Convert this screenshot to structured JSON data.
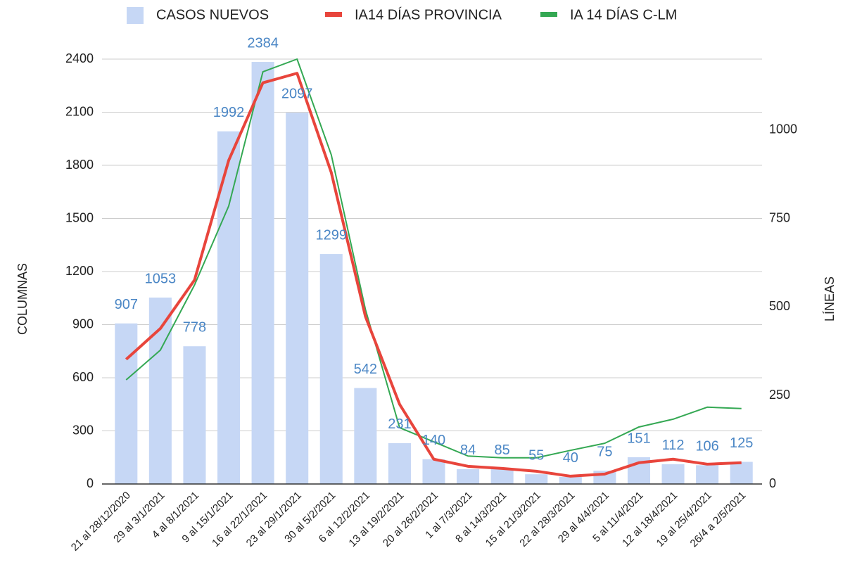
{
  "chart_data": {
    "type": "bar_line",
    "categories": [
      "21 al 28/12/2020",
      "29 al 3/1/2021",
      "4 al 8/1/2021",
      "9 al 15/1/2021",
      "16 al 22/1/2021",
      "23 al 29/1/2021",
      "30 al 5/2/2021",
      "6 al 12/2/2021",
      "13 al 19/2/2021",
      "20 al 26/2/2021",
      "1 al 7/3/2021",
      "8 al 14/3/2021",
      "15 al 21/3/2021",
      "22 al 28/3/2021",
      "29 al 4/4/2021",
      "5 al 11/4/2021",
      "12 al 18/4/2021",
      "19 al 25/4/2021",
      "26/4 a 2/5/2021"
    ],
    "series": [
      {
        "name": "CASOS NUEVOS",
        "type": "bar",
        "color": "#c6d7f5",
        "label_color": "#4a86c5",
        "values": [
          907,
          1053,
          778,
          1992,
          2384,
          2097,
          1299,
          542,
          231,
          140,
          84,
          85,
          55,
          40,
          75,
          151,
          112,
          106,
          125
        ]
      },
      {
        "name": "IA14 DÍAS PROVINCIA",
        "type": "line",
        "axis": "y2",
        "color": "#e8453c",
        "values": [
          352,
          439,
          576,
          914,
          1133,
          1160,
          880,
          473,
          225,
          70,
          50,
          44,
          36,
          22,
          28,
          60,
          70,
          56,
          60
        ]
      },
      {
        "name": "IA 14 DÍAS C-LM",
        "type": "line",
        "axis": "y2",
        "color": "#34a853",
        "values": [
          294,
          378,
          562,
          785,
          1164,
          1200,
          930,
          493,
          159,
          119,
          79,
          74,
          74,
          95,
          115,
          161,
          183,
          217,
          213
        ]
      }
    ],
    "ylabel": "COLUMNAS",
    "y2label": "LÍNEAS",
    "ylim": [
      0,
      2400
    ],
    "yticks": [
      0,
      300,
      600,
      900,
      1200,
      1500,
      1800,
      2100,
      2400
    ],
    "y2lim": [
      0,
      1200
    ],
    "y2ticks": [
      0,
      250,
      500,
      750,
      1000
    ],
    "grid": true,
    "legend": "top"
  }
}
